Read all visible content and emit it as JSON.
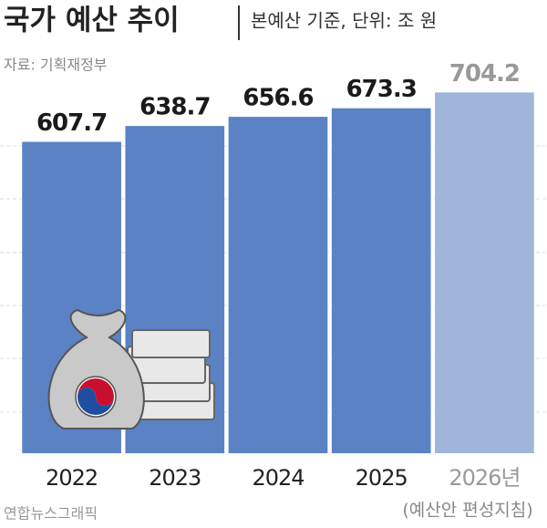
{
  "chart_data": {
    "type": "bar",
    "title": "국가 예산 추이",
    "subtitle": "본예산 기준, 단위: 조 원",
    "source": "자료: 기획재정부",
    "credit": "연합뉴스그래픽",
    "note": "(예산안 편성지침)",
    "categories": [
      "2022",
      "2023",
      "2024",
      "2025",
      "2026년"
    ],
    "values": [
      607.7,
      638.7,
      656.6,
      673.3,
      704.2
    ],
    "colors": [
      "#5a82c5",
      "#5a82c5",
      "#5a82c5",
      "#5a82c5",
      "#9fb6da"
    ],
    "ylim": [
      0,
      760
    ]
  }
}
